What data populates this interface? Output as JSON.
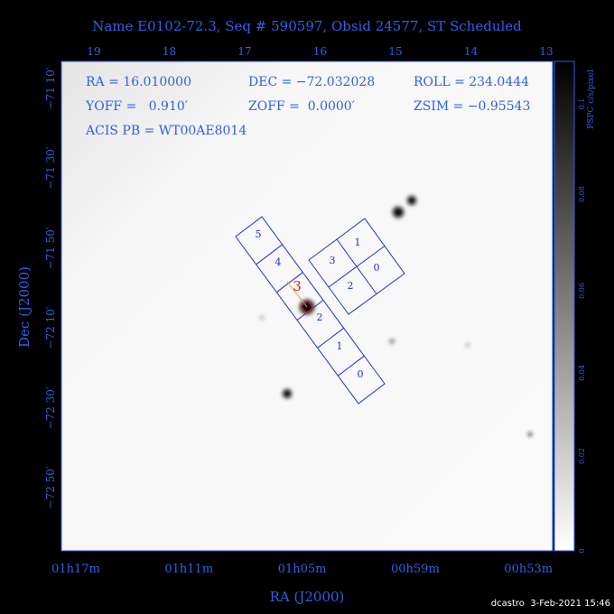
{
  "title": "Name E0102-72.3, Seq # 590597, Obsid 24577, ST Scheduled",
  "header": {
    "ra": "RA = 16.010000",
    "dec": "DEC = −72.032028",
    "roll": "ROLL = 234.0444",
    "yoff": "YOFF =   0.910′",
    "zoff": "ZOFF =  0.0000′",
    "zsim": "ZSIM = −0.95543",
    "acis": "ACIS PB = WT00AE8014"
  },
  "top_axis": {
    "labels": [
      "19",
      "18",
      "17",
      "16",
      "15",
      "14",
      "13"
    ]
  },
  "left_axis": {
    "title": "Dec (J2000)",
    "labels": [
      "−71 10′",
      "−71 30′",
      "−71 50′",
      "−72 10′",
      "−72 30′",
      "−72 50′"
    ]
  },
  "bottom_axis": {
    "title": "RA (J2000)",
    "labels": [
      "01h17m",
      "01h11m",
      "01h05m",
      "00h59m",
      "00h53m"
    ]
  },
  "colorbar": {
    "title": "PSPC c/s/pixel",
    "labels": [
      "0",
      "0.02",
      "0.04",
      "0.06",
      "0.08",
      "0.1"
    ]
  },
  "chips": {
    "s_array": [
      "5",
      "4",
      "3",
      "2",
      "1",
      "0"
    ],
    "i_array": [
      "1",
      "3",
      "0",
      "2"
    ]
  },
  "footer": "dcastro  3-Feb-2021 15:46"
}
